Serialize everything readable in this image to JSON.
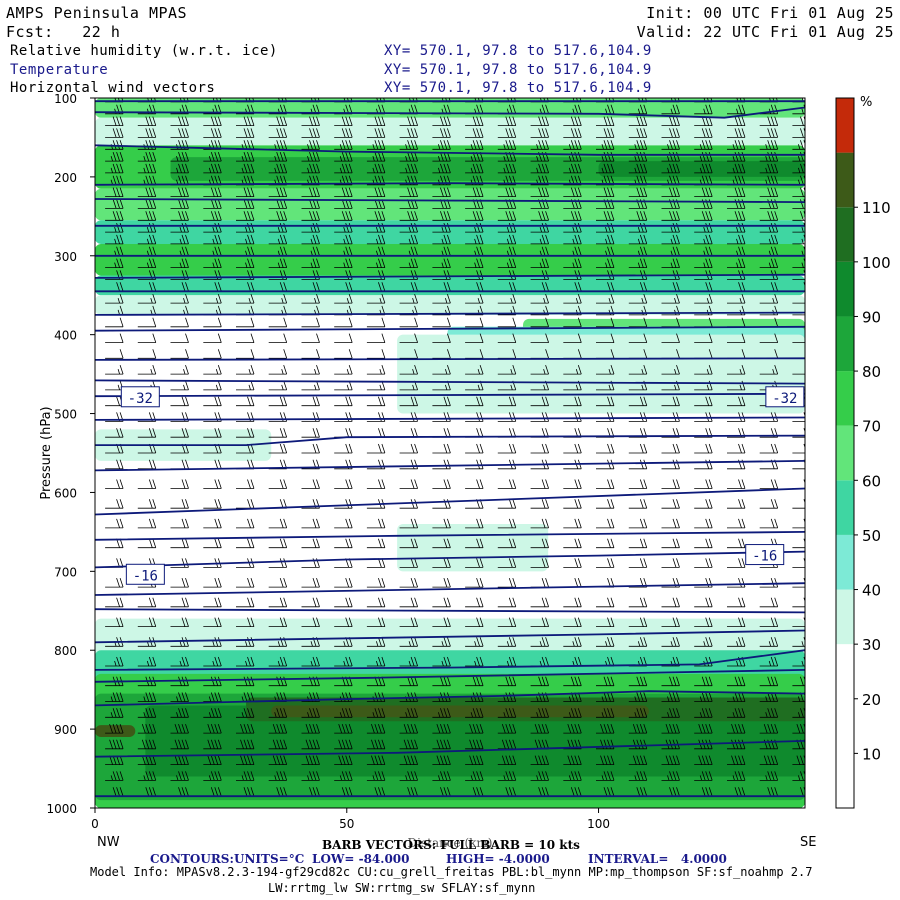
{
  "header": {
    "model_title": "AMPS Peninsula MPAS",
    "forecast": "Fcst:   22 h",
    "init": "Init: 00 UTC Fri 01 Aug 25",
    "valid": "Valid: 22 UTC Fri 01 Aug 25",
    "fields": [
      {
        "label": "Relative humidity (w.r.t. ice)",
        "xy": "XY= 570.1, 97.8 to 517.6,104.9"
      },
      {
        "label": "Temperature",
        "xy": "XY= 570.1, 97.8 to 517.6,104.9"
      },
      {
        "label": "Horizontal wind vectors",
        "xy": "XY= 570.1, 97.8 to 517.6,104.9"
      }
    ]
  },
  "chart_data": {
    "type": "cross-section",
    "xlabel": "Distance (km)",
    "ylabel": "Pressure (hPa)",
    "xlim": [
      0,
      141
    ],
    "ylim": [
      1000,
      100
    ],
    "x_ticks": [
      0,
      50,
      100
    ],
    "y_ticks": [
      100,
      200,
      300,
      400,
      500,
      600,
      700,
      800,
      900,
      1000
    ],
    "endpoints": {
      "left": "NW",
      "right": "SE"
    },
    "colorbar": {
      "unit": "%",
      "ticks": [
        10,
        20,
        30,
        40,
        50,
        60,
        70,
        80,
        90,
        100,
        110
      ],
      "levels": [
        0,
        10,
        20,
        30,
        40,
        50,
        60,
        70,
        80,
        90,
        100,
        110,
        120
      ],
      "colors": [
        "#ffffff",
        "#ffffff",
        "#ffffff",
        "#cdf7e6",
        "#7dead6",
        "#3fd6a2",
        "#62e57a",
        "#35cd4a",
        "#1da63a",
        "#0f8a2d",
        "#1f6e21",
        "#3d5a18",
        "#c42a0a"
      ]
    },
    "rh_bands": [
      {
        "p_top": 100,
        "p_bot": 125,
        "x0": 0,
        "x1": 141,
        "rh": 65,
        "label": ""
      },
      {
        "p_top": 125,
        "p_bot": 160,
        "x0": 0,
        "x1": 141,
        "rh": 35,
        "label": ""
      },
      {
        "p_top": 160,
        "p_bot": 215,
        "x0": 0,
        "x1": 141,
        "rh": 75,
        "label": ""
      },
      {
        "p_top": 175,
        "p_bot": 205,
        "x0": 15,
        "x1": 141,
        "rh": 85,
        "label": ""
      },
      {
        "p_top": 180,
        "p_bot": 200,
        "x0": 100,
        "x1": 141,
        "rh": 95,
        "label": ""
      },
      {
        "p_top": 215,
        "p_bot": 255,
        "x0": 0,
        "x1": 141,
        "rh": 62,
        "label": ""
      },
      {
        "p_top": 255,
        "p_bot": 285,
        "x0": 0,
        "x1": 141,
        "rh": 55,
        "label": ""
      },
      {
        "p_top": 285,
        "p_bot": 325,
        "x0": 0,
        "x1": 141,
        "rh": 72,
        "label": ""
      },
      {
        "p_top": 325,
        "p_bot": 350,
        "x0": 0,
        "x1": 141,
        "rh": 55,
        "label": ""
      },
      {
        "p_top": 350,
        "p_bot": 375,
        "x0": 0,
        "x1": 141,
        "rh": 38,
        "label": ""
      },
      {
        "p_top": 375,
        "p_bot": 400,
        "x0": 0,
        "x1": 141,
        "rh": 25,
        "label": ""
      },
      {
        "p_top": 380,
        "p_bot": 440,
        "x0": 85,
        "x1": 141,
        "rh": 62,
        "label": ""
      },
      {
        "p_top": 390,
        "p_bot": 470,
        "x0": 70,
        "x1": 141,
        "rh": 45,
        "label": ""
      },
      {
        "p_top": 400,
        "p_bot": 500,
        "x0": 60,
        "x1": 141,
        "rh": 35,
        "label": ""
      },
      {
        "p_top": 520,
        "p_bot": 560,
        "x0": 0,
        "x1": 35,
        "rh": 35,
        "label": ""
      },
      {
        "p_top": 640,
        "p_bot": 700,
        "x0": 60,
        "x1": 90,
        "rh": 32,
        "label": ""
      },
      {
        "p_top": 760,
        "p_bot": 1000,
        "x0": 0,
        "x1": 141,
        "rh": 35,
        "label": ""
      },
      {
        "p_top": 800,
        "p_bot": 1000,
        "x0": 0,
        "x1": 141,
        "rh": 55,
        "label": ""
      },
      {
        "p_top": 830,
        "p_bot": 1000,
        "x0": 0,
        "x1": 141,
        "rh": 72,
        "label": ""
      },
      {
        "p_top": 855,
        "p_bot": 990,
        "x0": 0,
        "x1": 141,
        "rh": 85,
        "label": ""
      },
      {
        "p_top": 870,
        "p_bot": 960,
        "x0": 10,
        "x1": 141,
        "rh": 95,
        "label": ""
      },
      {
        "p_top": 860,
        "p_bot": 890,
        "x0": 30,
        "x1": 141,
        "rh": 105,
        "label": ""
      },
      {
        "p_top": 870,
        "p_bot": 885,
        "x0": 35,
        "x1": 110,
        "rh": 115,
        "label": ""
      },
      {
        "p_top": 895,
        "p_bot": 910,
        "x0": 0,
        "x1": 8,
        "rh": 115,
        "label": ""
      }
    ],
    "temperature_contours": [
      {
        "x": [
          0,
          141
        ],
        "p": [
          104,
          104
        ]
      },
      {
        "x": [
          0,
          100,
          125,
          141
        ],
        "p": [
          118,
          120,
          125,
          112
        ]
      },
      {
        "x": [
          0,
          50,
          100,
          141
        ],
        "p": [
          160,
          168,
          172,
          172
        ]
      },
      {
        "x": [
          0,
          70,
          141
        ],
        "p": [
          210,
          208,
          210
        ]
      },
      {
        "x": [
          0,
          141
        ],
        "p": [
          228,
          232
        ]
      },
      {
        "x": [
          0,
          141
        ],
        "p": [
          262,
          262
        ]
      },
      {
        "x": [
          0,
          141
        ],
        "p": [
          300,
          300
        ]
      },
      {
        "x": [
          0,
          141
        ],
        "p": [
          328,
          324
        ]
      },
      {
        "x": [
          0,
          141
        ],
        "p": [
          345,
          345
        ]
      },
      {
        "x": [
          0,
          141
        ],
        "p": [
          375,
          372
        ]
      },
      {
        "x": [
          0,
          141
        ],
        "p": [
          395,
          390
        ]
      },
      {
        "x": [
          0,
          141
        ],
        "p": [
          432,
          430
        ]
      },
      {
        "x": [
          0,
          141
        ],
        "p": [
          458,
          462
        ]
      },
      {
        "x": [
          0,
          141
        ],
        "p": [
          478,
          475
        ]
      },
      {
        "x": [
          0,
          141
        ],
        "p": [
          508,
          505
        ]
      },
      {
        "x": [
          0,
          30,
          50,
          141
        ],
        "p": [
          540,
          540,
          530,
          528
        ]
      },
      {
        "x": [
          0,
          141
        ],
        "p": [
          572,
          560
        ]
      },
      {
        "x": [
          0,
          141
        ],
        "p": [
          628,
          595
        ]
      },
      {
        "x": [
          0,
          60,
          141
        ],
        "p": [
          660,
          655,
          650
        ]
      },
      {
        "x": [
          0,
          50,
          100,
          141
        ],
        "p": [
          695,
          685,
          680,
          675
        ]
      },
      {
        "x": [
          0,
          141
        ],
        "p": [
          730,
          715
        ]
      },
      {
        "x": [
          0,
          141
        ],
        "p": [
          748,
          752
        ]
      },
      {
        "x": [
          0,
          100,
          141
        ],
        "p": [
          790,
          780,
          775
        ]
      },
      {
        "x": [
          0,
          70,
          120,
          141
        ],
        "p": [
          825,
          822,
          818,
          800
        ]
      },
      {
        "x": [
          0,
          55,
          141
        ],
        "p": [
          840,
          835,
          825
        ]
      },
      {
        "x": [
          0,
          50,
          80,
          110,
          141
        ],
        "p": [
          870,
          862,
          858,
          852,
          855
        ]
      },
      {
        "x": [
          0,
          60,
          141
        ],
        "p": [
          935,
          930,
          915
        ]
      },
      {
        "x": [
          0,
          141
        ],
        "p": [
          985,
          985
        ]
      }
    ],
    "contour_labels": [
      {
        "text": "-32",
        "x": 9,
        "p": 480
      },
      {
        "text": "-32",
        "x": 137,
        "p": 480
      },
      {
        "text": "-16",
        "x": 10,
        "p": 705
      },
      {
        "text": "-16",
        "x": 133,
        "p": 680
      }
    ],
    "wind_barbs": {
      "spacing_x_km": 6.5,
      "levels": [
        {
          "p": 105,
          "dir": "W",
          "knots": 25
        },
        {
          "p": 120,
          "dir": "W",
          "knots": 25
        },
        {
          "p": 135,
          "dir": "W",
          "knots": 30
        },
        {
          "p": 150,
          "dir": "W",
          "knots": 30
        },
        {
          "p": 165,
          "dir": "W",
          "knots": 35
        },
        {
          "p": 180,
          "dir": "W",
          "knots": 35
        },
        {
          "p": 195,
          "dir": "W",
          "knots": 35
        },
        {
          "p": 210,
          "dir": "W",
          "knots": 35
        },
        {
          "p": 225,
          "dir": "W",
          "knots": 30
        },
        {
          "p": 240,
          "dir": "W",
          "knots": 30
        },
        {
          "p": 255,
          "dir": "W",
          "knots": 30
        },
        {
          "p": 270,
          "dir": "W",
          "knots": 25
        },
        {
          "p": 285,
          "dir": "W",
          "knots": 25
        },
        {
          "p": 300,
          "dir": "W",
          "knots": 25
        },
        {
          "p": 315,
          "dir": "W",
          "knots": 25
        },
        {
          "p": 330,
          "dir": "W",
          "knots": 20
        },
        {
          "p": 345,
          "dir": "W",
          "knots": 20
        },
        {
          "p": 360,
          "dir": "W",
          "knots": 15
        },
        {
          "p": 375,
          "dir": "W",
          "knots": 15
        },
        {
          "p": 390,
          "dir": "W",
          "knots": 10
        },
        {
          "p": 410,
          "dir": "W",
          "knots": 10
        },
        {
          "p": 430,
          "dir": "W",
          "knots": 10
        },
        {
          "p": 450,
          "dir": "W",
          "knots": 15
        },
        {
          "p": 470,
          "dir": "W",
          "knots": 15
        },
        {
          "p": 490,
          "dir": "W",
          "knots": 20
        },
        {
          "p": 510,
          "dir": "W",
          "knots": 20
        },
        {
          "p": 530,
          "dir": "W",
          "knots": 20
        },
        {
          "p": 550,
          "dir": "W",
          "knots": 20
        },
        {
          "p": 570,
          "dir": "W",
          "knots": 20
        },
        {
          "p": 595,
          "dir": "W",
          "knots": 20
        },
        {
          "p": 620,
          "dir": "W",
          "knots": 20
        },
        {
          "p": 645,
          "dir": "W",
          "knots": 20
        },
        {
          "p": 670,
          "dir": "W",
          "knots": 20
        },
        {
          "p": 695,
          "dir": "W",
          "knots": 20
        },
        {
          "p": 720,
          "dir": "W",
          "knots": 20
        },
        {
          "p": 745,
          "dir": "W",
          "knots": 20
        },
        {
          "p": 770,
          "dir": "W",
          "knots": 20
        },
        {
          "p": 795,
          "dir": "W",
          "knots": 25
        },
        {
          "p": 820,
          "dir": "W",
          "knots": 25
        },
        {
          "p": 845,
          "dir": "W",
          "knots": 30
        },
        {
          "p": 865,
          "dir": "W",
          "knots": 35
        },
        {
          "p": 885,
          "dir": "W",
          "knots": 35
        },
        {
          "p": 905,
          "dir": "W",
          "knots": 40
        },
        {
          "p": 925,
          "dir": "W",
          "knots": 40
        },
        {
          "p": 945,
          "dir": "W",
          "knots": 40
        },
        {
          "p": 965,
          "dir": "W",
          "knots": 35
        },
        {
          "p": 985,
          "dir": "W",
          "knots": 30
        }
      ]
    }
  },
  "footer": {
    "barb_note": "BARB VECTORS: FULL BARB = 10 kts",
    "contours": {
      "label": "CONTOURS:",
      "units": "UNITS=°C",
      "low": "LOW= -84.000",
      "high": "HIGH= -4.0000",
      "interval": "INTERVAL=   4.0000"
    },
    "model_info": "Model Info: MPASv8.2.3-194-gf29cd82c CU:cu_grell_freitas PBL:bl_mynn MP:mp_thompson SF:sf_noahmp 2.7",
    "model_info_2": "LW:rrtmg_lw SW:rrtmg_sw SFLAY:sf_mynn"
  }
}
